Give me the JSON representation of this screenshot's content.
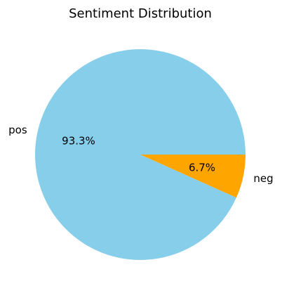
{
  "chart_data": {
    "type": "pie",
    "title": "Sentiment Distribution",
    "labels": [
      "pos",
      "neg"
    ],
    "values": [
      93.3,
      6.7
    ],
    "percent_labels": [
      "93.3%",
      "6.7%"
    ],
    "colors": [
      "#87CEEB",
      "#FFA500"
    ],
    "legend": "none"
  }
}
